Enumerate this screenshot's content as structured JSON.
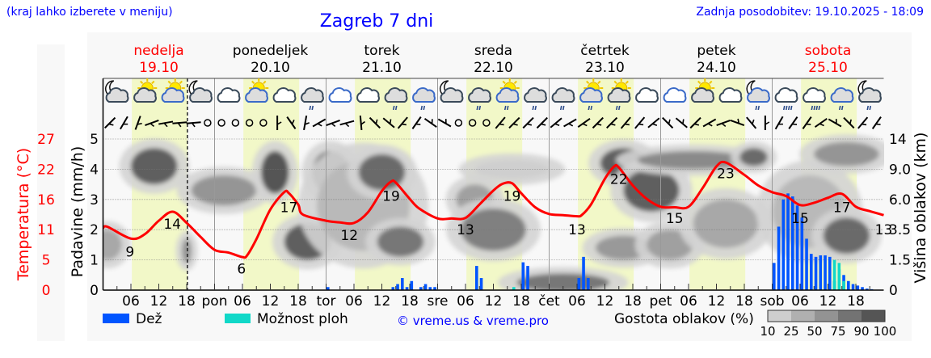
{
  "header": {
    "location_hint": "(kraj lahko izberete v meniju)",
    "title": "Zagreb 7 dni",
    "last_update": "Zadnja posodobitev: 19.10.2025 - 18:09"
  },
  "colors": {
    "header_text": "#0000ff",
    "weekend_day": "#ff0000",
    "weekday": "#000000",
    "temperature_line": "#ff0000",
    "rain": "#0055ff",
    "showers": "#11d8c8",
    "daylight": "#f2f8c8",
    "night": "#f8f8f8"
  },
  "days": [
    {
      "name": "nedelja",
      "date": "19.10",
      "abbr": "",
      "weekend": true
    },
    {
      "name": "ponedeljek",
      "date": "20.10",
      "abbr": "pon",
      "weekend": false
    },
    {
      "name": "torek",
      "date": "21.10",
      "abbr": "tor",
      "weekend": false
    },
    {
      "name": "sreda",
      "date": "22.10",
      "abbr": "sre",
      "weekend": false
    },
    {
      "name": "četrtek",
      "date": "23.10",
      "abbr": "čet",
      "weekend": false
    },
    {
      "name": "petek",
      "date": "24.10",
      "abbr": "pet",
      "weekend": false
    },
    {
      "name": "sobota",
      "date": "25.10",
      "abbr": "sob",
      "weekend": true
    }
  ],
  "chart_data": {
    "type": "meteogram",
    "x_unit": "hours from 19.10 00:00",
    "xlim": [
      0,
      168
    ],
    "hour_tick_labels": [
      "06",
      "12",
      "18"
    ],
    "now_hour": 18.15,
    "daylight_hours": [
      6.2,
      18.2
    ],
    "left_axis": {
      "label": "Padavine (mm/h)",
      "ticks": [
        "0",
        "1",
        "2",
        "3",
        "4",
        "5"
      ],
      "range": [
        0,
        5
      ]
    },
    "temp_axis": {
      "label": "Temperatura (°C)",
      "ticks": [
        "0",
        "5",
        "11",
        "16",
        "22",
        "27"
      ],
      "range": [
        0,
        27
      ]
    },
    "right_axis": {
      "label": "Višina oblakov (km)",
      "ticks": [
        "0",
        "1.5",
        "3.5",
        "6.0",
        "9.0",
        "14"
      ]
    },
    "grid": true,
    "temperature": [
      [
        0,
        11.1
      ],
      [
        1,
        11.3
      ],
      [
        6,
        9.2
      ],
      [
        9,
        10.0
      ],
      [
        12,
        12.4
      ],
      [
        15,
        14.0
      ],
      [
        18,
        12.0
      ],
      [
        21,
        9.5
      ],
      [
        24,
        7.2
      ],
      [
        27,
        6.7
      ],
      [
        30,
        5.9
      ],
      [
        31,
        6.2
      ],
      [
        33,
        9.1
      ],
      [
        36,
        14.4
      ],
      [
        39,
        17.5
      ],
      [
        40,
        17.3
      ],
      [
        42,
        15.3
      ],
      [
        43,
        13.5
      ],
      [
        48,
        12.4
      ],
      [
        51,
        12.1
      ],
      [
        54,
        12.0
      ],
      [
        57,
        13.9
      ],
      [
        60,
        17.7
      ],
      [
        62,
        19.4
      ],
      [
        63,
        19.2
      ],
      [
        66,
        16.3
      ],
      [
        68,
        14.6
      ],
      [
        72,
        12.8
      ],
      [
        75,
        12.8
      ],
      [
        78,
        12.9
      ],
      [
        81,
        15.3
      ],
      [
        84,
        17.8
      ],
      [
        86,
        19.0
      ],
      [
        88,
        19.1
      ],
      [
        90,
        17.3
      ],
      [
        93,
        14.8
      ],
      [
        96,
        13.6
      ],
      [
        99,
        13.4
      ],
      [
        102,
        13.2
      ],
      [
        103,
        13.4
      ],
      [
        105,
        15.3
      ],
      [
        108,
        19.9
      ],
      [
        110,
        22.1
      ],
      [
        111,
        21.9
      ],
      [
        114,
        18.7
      ],
      [
        117,
        16.3
      ],
      [
        120,
        14.9
      ],
      [
        123,
        14.8
      ],
      [
        126,
        14.9
      ],
      [
        129,
        18.2
      ],
      [
        132,
        22.1
      ],
      [
        134,
        22.8
      ],
      [
        138,
        20.6
      ],
      [
        141,
        18.7
      ],
      [
        144,
        17.5
      ],
      [
        147,
        16.8
      ],
      [
        150,
        15.2
      ],
      [
        153,
        15.6
      ],
      [
        156,
        16.5
      ],
      [
        159,
        17.2
      ],
      [
        162,
        14.9
      ],
      [
        165,
        14.1
      ],
      [
        168,
        13.4
      ]
    ],
    "temperature_labels": [
      [
        5.8,
        "9"
      ],
      [
        14.9,
        "14"
      ],
      [
        29.8,
        "6"
      ],
      [
        40,
        "17"
      ],
      [
        53,
        "12"
      ],
      [
        62,
        "19"
      ],
      [
        78,
        "13"
      ],
      [
        88,
        "19"
      ],
      [
        102,
        "13"
      ],
      [
        111,
        "22"
      ],
      [
        123,
        "15"
      ],
      [
        134,
        "23"
      ],
      [
        150,
        "15"
      ],
      [
        159,
        "17"
      ],
      [
        168,
        "13"
      ]
    ],
    "rain": [
      [
        48,
        0.1
      ],
      [
        62,
        0.1
      ],
      [
        63,
        0.2
      ],
      [
        64,
        0.4
      ],
      [
        65,
        0.1
      ],
      [
        66,
        0.3
      ],
      [
        68,
        0.1
      ],
      [
        69,
        0.2
      ],
      [
        70,
        0.1
      ],
      [
        71,
        0.1
      ],
      [
        80,
        0.8
      ],
      [
        81,
        0.4
      ],
      [
        90,
        0.92
      ],
      [
        91,
        0.8
      ],
      [
        102,
        0.4
      ],
      [
        103,
        1.1
      ],
      [
        104,
        0.4
      ],
      [
        144,
        0.9
      ],
      [
        145,
        2.1
      ],
      [
        146,
        3.0
      ],
      [
        147,
        3.2
      ],
      [
        148,
        3.1
      ],
      [
        149,
        2.8
      ],
      [
        150,
        2.4
      ],
      [
        151,
        1.7
      ],
      [
        152,
        1.2
      ],
      [
        153,
        1.1
      ],
      [
        154,
        1.15
      ],
      [
        155,
        1.15
      ],
      [
        156,
        1.1
      ],
      [
        157,
        0.3
      ],
      [
        158,
        0.7
      ],
      [
        159,
        0.5
      ],
      [
        160,
        0.3
      ],
      [
        161,
        0.2
      ],
      [
        162,
        0.15
      ],
      [
        163,
        0.1
      ],
      [
        164,
        0.05
      ],
      [
        165,
        0.03
      ]
    ],
    "showers": [
      [
        88,
        0.1
      ],
      [
        157,
        1.0
      ],
      [
        158,
        0.9
      ],
      [
        159,
        0.3
      ]
    ],
    "cloud_density": {
      "legend_title": "Gostota oblakov (%)",
      "levels": [
        "10",
        "25",
        "50",
        "75",
        "90",
        "100"
      ],
      "blobs": [
        [
          1,
          1.5,
          3,
          0.5,
          50
        ],
        [
          11,
          4.1,
          5,
          0.6,
          85
        ],
        [
          18,
          1.3,
          1,
          0.4,
          60
        ],
        [
          26,
          3.3,
          7,
          0.5,
          60
        ],
        [
          37,
          3.9,
          3,
          0.7,
          90
        ],
        [
          44,
          1.6,
          5,
          0.6,
          85
        ],
        [
          49,
          3.9,
          4,
          0.7,
          85
        ],
        [
          56,
          2.8,
          10,
          1.5,
          45
        ],
        [
          60,
          3.9,
          5,
          0.6,
          80
        ],
        [
          64,
          1.6,
          5,
          0.5,
          75
        ],
        [
          80,
          3.0,
          4,
          0.5,
          55
        ],
        [
          84,
          2.0,
          7,
          0.7,
          70
        ],
        [
          88,
          4.0,
          8,
          0.3,
          30
        ],
        [
          99,
          0.25,
          10,
          0.3,
          75
        ],
        [
          112,
          4.2,
          5,
          0.5,
          85
        ],
        [
          112,
          1.4,
          6,
          0.4,
          35
        ],
        [
          118,
          3.3,
          6,
          0.7,
          85
        ],
        [
          122,
          1.5,
          5,
          0.5,
          55
        ],
        [
          127,
          4.3,
          12,
          0.3,
          65
        ],
        [
          134,
          2.2,
          7,
          0.8,
          50
        ],
        [
          140,
          4.4,
          3,
          0.3,
          80
        ],
        [
          152,
          2.6,
          8,
          1.2,
          45
        ],
        [
          160,
          1.8,
          5,
          0.6,
          80
        ],
        [
          160,
          4.5,
          7,
          0.4,
          60
        ]
      ]
    },
    "weather_icons": [
      "moon-cloud",
      "sun-cloud",
      "sun-cloud",
      "moon-cloud",
      "cloud",
      "sun-cloud",
      "cloud",
      "cloud-rain",
      "cloud",
      "cloud",
      "cloud-rain",
      "cloud-rain",
      "moon-cloud",
      "cloud-rain",
      "sun-cloud-rain",
      "cloud-rain",
      "cloud-rain",
      "sun-cloud-rain",
      "sun-cloud-rain",
      "cloud",
      "cloud",
      "sun-cloud",
      "cloud",
      "moon-cloud-rain",
      "cloud-heavy-rain",
      "cloud-heavy-rain",
      "cloud-rain",
      "moon-cloud-rain"
    ],
    "wind_barb_angles": [
      45,
      30,
      20,
      70,
      80,
      85,
      85,
      null,
      null,
      null,
      null,
      null,
      0,
      -35,
      10,
      60,
      70,
      75,
      -5,
      -45,
      -50,
      40,
      35,
      -55,
      -60,
      null,
      null,
      null,
      40,
      45,
      45,
      45,
      50,
      60,
      55,
      45,
      45,
      40,
      40,
      50,
      -45,
      -50,
      45,
      60,
      70,
      -70,
      -40,
      0,
      30,
      35,
      35,
      55,
      -60,
      -45,
      40,
      35
    ]
  },
  "legend": {
    "rain_label": "Dež",
    "showers_label": "Možnost ploh",
    "copyright": "© vreme.us & vreme.pro"
  }
}
